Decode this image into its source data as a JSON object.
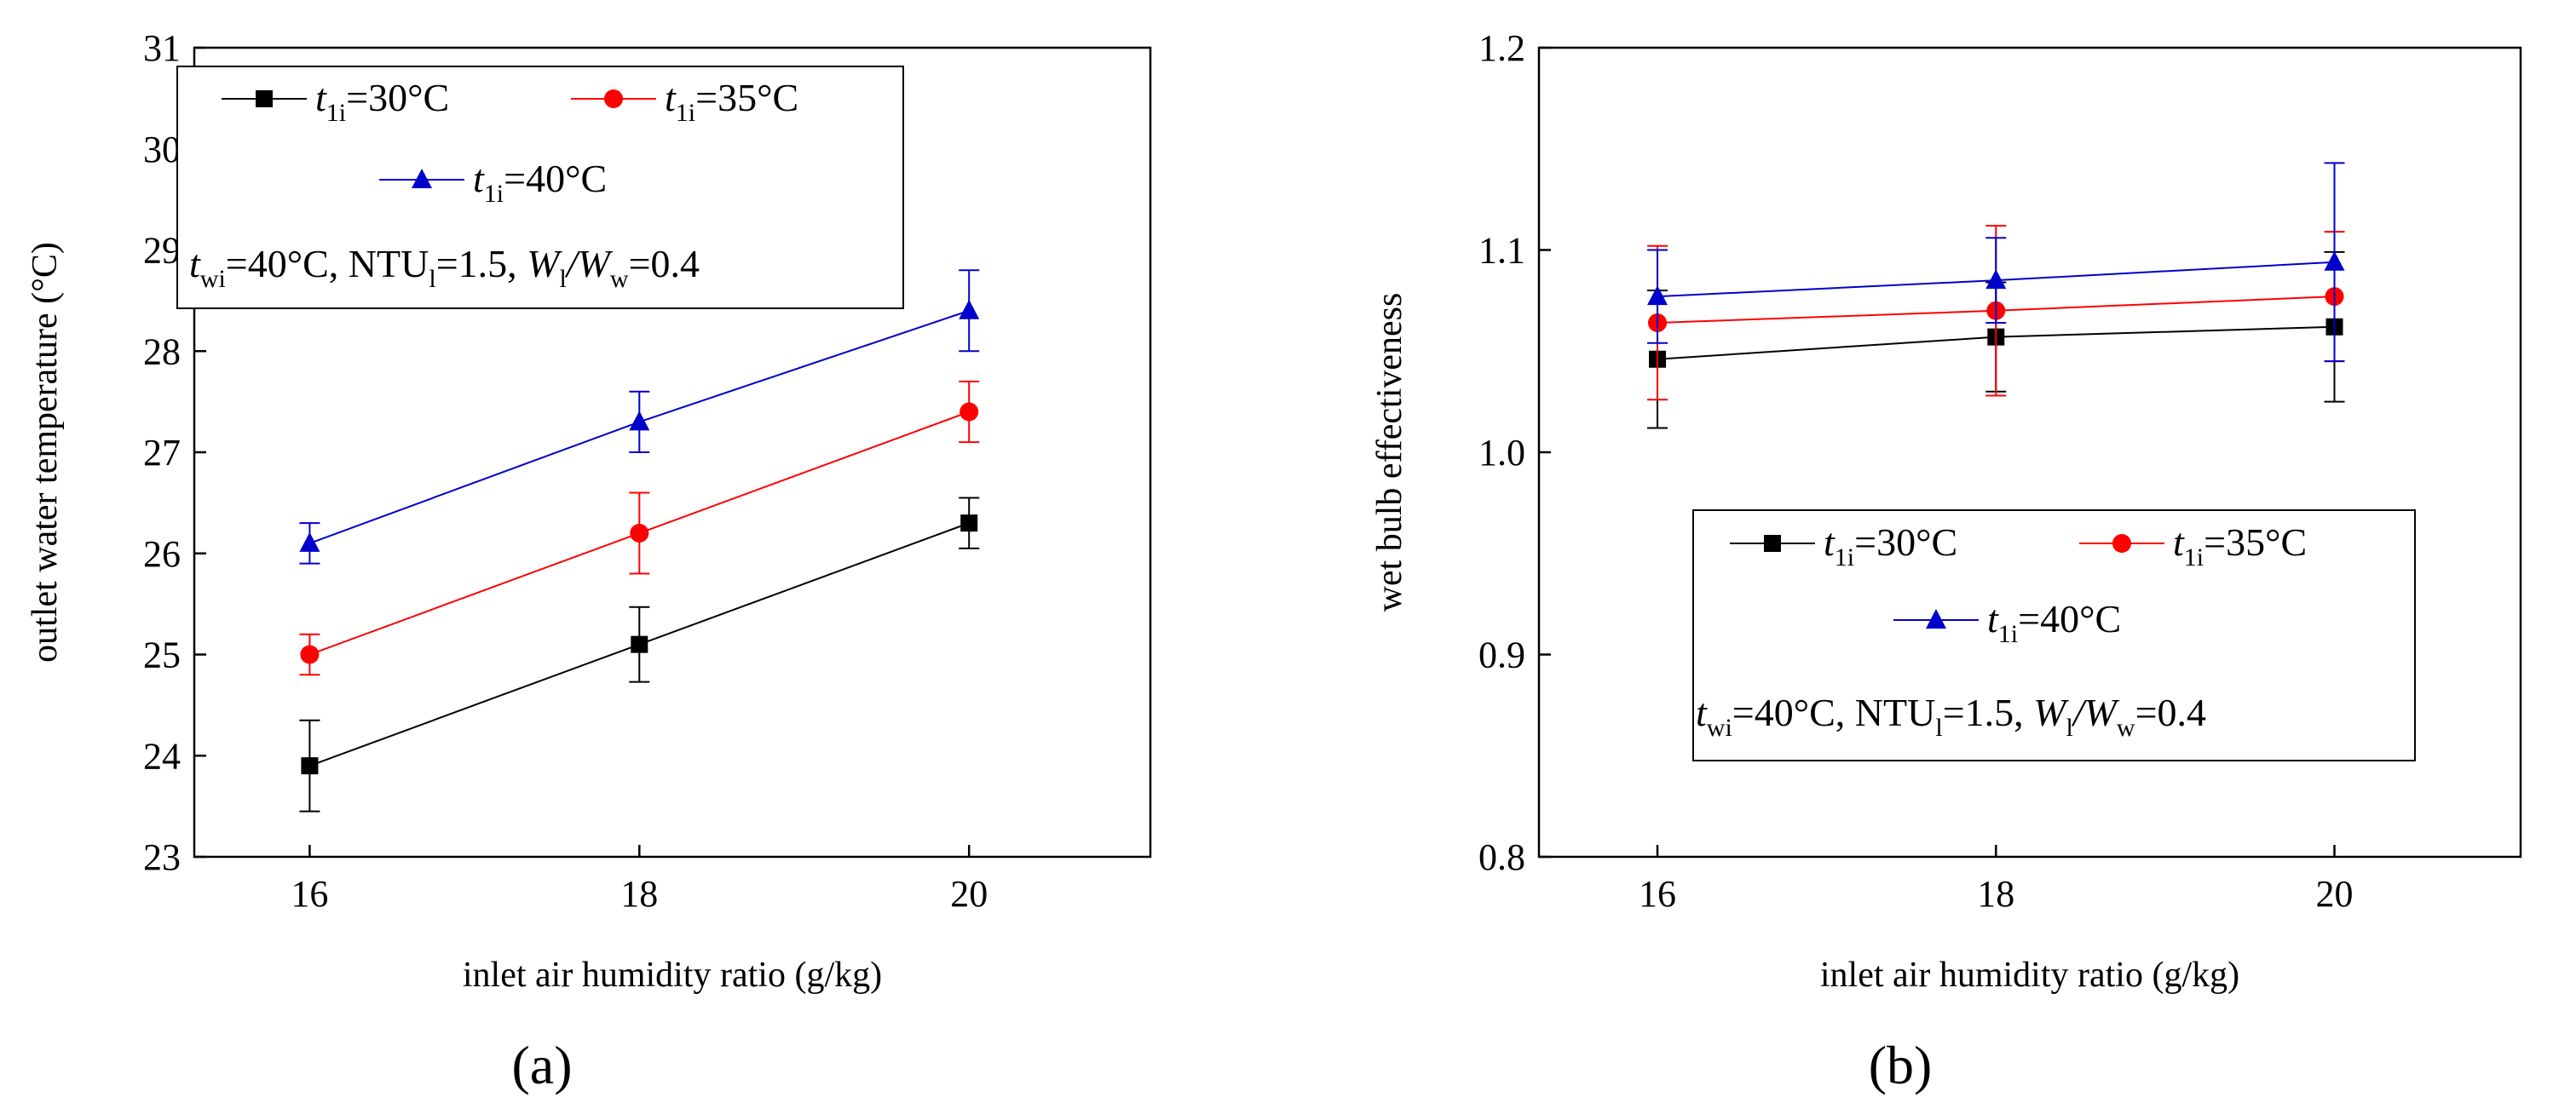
{
  "chart_data": [
    {
      "type": "line",
      "panel_label": "(a)",
      "xlabel": "inlet air humidity ratio (g/kg)",
      "ylabel": "outlet water temperature (°C)",
      "x": [
        16,
        18,
        20
      ],
      "xticks": [
        "16",
        "18",
        "20"
      ],
      "xlim": [
        15.3,
        21.1
      ],
      "ylim": [
        23,
        31
      ],
      "yticks": [
        "23",
        "24",
        "25",
        "26",
        "27",
        "28",
        "29",
        "30",
        "31"
      ],
      "series": [
        {
          "name": "t1i=30°C",
          "sym": "t",
          "sub": "1i",
          "rest": "=30°C",
          "color": "#000000",
          "marker": "square",
          "values": [
            23.9,
            25.1,
            26.3
          ],
          "err_low": [
            23.45,
            24.73,
            26.05
          ],
          "err_high": [
            24.35,
            25.47,
            26.55
          ]
        },
        {
          "name": "t1i=35°C",
          "sym": "t",
          "sub": "1i",
          "rest": "=35°C",
          "color": "#ff0000",
          "marker": "circle",
          "values": [
            25.0,
            26.2,
            27.4
          ],
          "err_low": [
            24.8,
            25.8,
            27.1
          ],
          "err_high": [
            25.2,
            26.6,
            27.7
          ]
        },
        {
          "name": "t1i=40°C",
          "sym": "t",
          "sub": "1i",
          "rest": "=40°C",
          "color": "#0000cc",
          "marker": "triangle",
          "values": [
            26.1,
            27.3,
            28.4
          ],
          "err_low": [
            25.9,
            27.0,
            28.0
          ],
          "err_high": [
            26.3,
            27.6,
            28.8
          ]
        }
      ],
      "conditions": {
        "a_sym": "t",
        "a_sub": "wi",
        "a_rest": "=40°C, NTU",
        "b_sub": "l",
        "b_rest": "=1.5, ",
        "c_sym": "W",
        "c_sub": "l",
        "d_sym": "/W",
        "d_sub": "w",
        "d_rest": "=0.4"
      }
    },
    {
      "type": "line",
      "panel_label": "(b)",
      "xlabel": "inlet air humidity ratio (g/kg)",
      "ylabel": "wet bulb effectiveness",
      "x": [
        16,
        18,
        20
      ],
      "xticks": [
        "16",
        "18",
        "20"
      ],
      "xlim": [
        15.3,
        21.1
      ],
      "ylim": [
        0.8,
        1.2
      ],
      "yticks": [
        "0.8",
        "0.9",
        "1.0",
        "1.1",
        "1.2"
      ],
      "series": [
        {
          "name": "t1i=30°C",
          "sym": "t",
          "sub": "1i",
          "rest": "=30°C",
          "color": "#000000",
          "marker": "square",
          "values": [
            1.046,
            1.057,
            1.062
          ],
          "err_low": [
            1.012,
            1.03,
            1.025
          ],
          "err_high": [
            1.08,
            1.084,
            1.099
          ]
        },
        {
          "name": "t1i=35°C",
          "sym": "t",
          "sub": "1i",
          "rest": "=35°C",
          "color": "#ff0000",
          "marker": "circle",
          "values": [
            1.064,
            1.07,
            1.077
          ],
          "err_low": [
            1.026,
            1.028,
            1.045
          ],
          "err_high": [
            1.102,
            1.112,
            1.109
          ]
        },
        {
          "name": "t1i=40°C",
          "sym": "t",
          "sub": "1i",
          "rest": "=40°C",
          "color": "#0000cc",
          "marker": "triangle",
          "values": [
            1.077,
            1.085,
            1.094
          ],
          "err_low": [
            1.054,
            1.064,
            1.045
          ],
          "err_high": [
            1.1,
            1.106,
            1.143
          ]
        }
      ],
      "conditions": {
        "a_sym": "t",
        "a_sub": "wi",
        "a_rest": "=40°C, NTU",
        "b_sub": "l",
        "b_rest": "=1.5, ",
        "c_sym": "W",
        "c_sub": "l",
        "d_sym": "/W",
        "d_sub": "w",
        "d_rest": "=0.4"
      }
    }
  ]
}
